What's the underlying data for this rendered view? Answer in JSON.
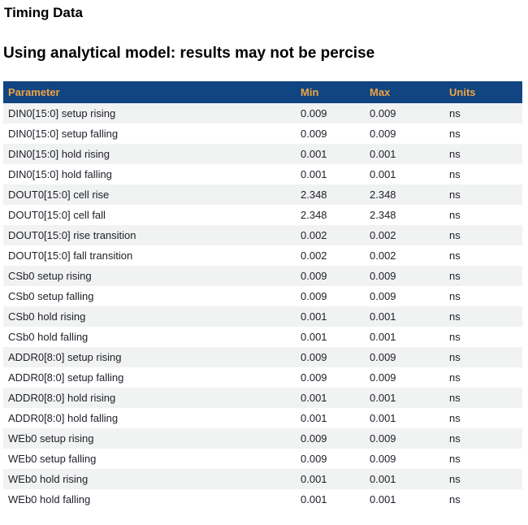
{
  "page": {
    "title": "Timing Data",
    "subtitle": "Using analytical model: results may not be percise"
  },
  "colors": {
    "header_bg": "#114582",
    "header_text": "#f0a440",
    "row_alt_bg": "#f1f2f2",
    "row_text": "#21212b",
    "title_color": "#000000"
  },
  "table": {
    "columns": [
      "Parameter",
      "Min",
      "Max",
      "Units"
    ],
    "rows": [
      {
        "parameter": "DIN0[15:0] setup rising",
        "min": "0.009",
        "max": "0.009",
        "units": "ns"
      },
      {
        "parameter": "DIN0[15:0] setup falling",
        "min": "0.009",
        "max": "0.009",
        "units": "ns"
      },
      {
        "parameter": "DIN0[15:0] hold rising",
        "min": "0.001",
        "max": "0.001",
        "units": "ns"
      },
      {
        "parameter": "DIN0[15:0] hold falling",
        "min": "0.001",
        "max": "0.001",
        "units": "ns"
      },
      {
        "parameter": "DOUT0[15:0] cell rise",
        "min": "2.348",
        "max": "2.348",
        "units": "ns"
      },
      {
        "parameter": "DOUT0[15:0] cell fall",
        "min": "2.348",
        "max": "2.348",
        "units": "ns"
      },
      {
        "parameter": "DOUT0[15:0] rise transition",
        "min": "0.002",
        "max": "0.002",
        "units": "ns"
      },
      {
        "parameter": "DOUT0[15:0] fall transition",
        "min": "0.002",
        "max": "0.002",
        "units": "ns"
      },
      {
        "parameter": "CSb0 setup rising",
        "min": "0.009",
        "max": "0.009",
        "units": "ns"
      },
      {
        "parameter": "CSb0 setup falling",
        "min": "0.009",
        "max": "0.009",
        "units": "ns"
      },
      {
        "parameter": "CSb0 hold rising",
        "min": "0.001",
        "max": "0.001",
        "units": "ns"
      },
      {
        "parameter": "CSb0 hold falling",
        "min": "0.001",
        "max": "0.001",
        "units": "ns"
      },
      {
        "parameter": "ADDR0[8:0] setup rising",
        "min": "0.009",
        "max": "0.009",
        "units": "ns"
      },
      {
        "parameter": "ADDR0[8:0] setup falling",
        "min": "0.009",
        "max": "0.009",
        "units": "ns"
      },
      {
        "parameter": "ADDR0[8:0] hold rising",
        "min": "0.001",
        "max": "0.001",
        "units": "ns"
      },
      {
        "parameter": "ADDR0[8:0] hold falling",
        "min": "0.001",
        "max": "0.001",
        "units": "ns"
      },
      {
        "parameter": "WEb0 setup rising",
        "min": "0.009",
        "max": "0.009",
        "units": "ns"
      },
      {
        "parameter": "WEb0 setup falling",
        "min": "0.009",
        "max": "0.009",
        "units": "ns"
      },
      {
        "parameter": "WEb0 hold rising",
        "min": "0.001",
        "max": "0.001",
        "units": "ns"
      },
      {
        "parameter": "WEb0 hold falling",
        "min": "0.001",
        "max": "0.001",
        "units": "ns"
      }
    ]
  }
}
